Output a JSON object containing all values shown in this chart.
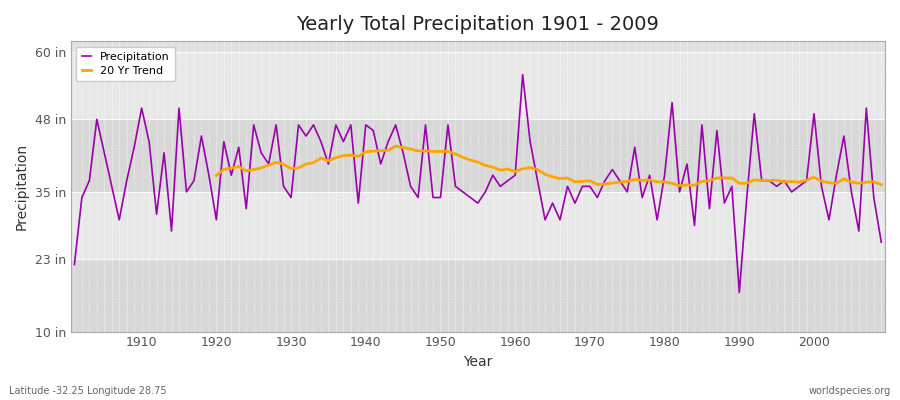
{
  "title": "Yearly Total Precipitation 1901 - 2009",
  "xlabel": "Year",
  "ylabel": "Precipitation",
  "lat_lon_label": "Latitude -32.25 Longitude 28.75",
  "source_label": "worldspecies.org",
  "precip_color": "#9900AA",
  "trend_color": "#FFA500",
  "years": [
    1901,
    1902,
    1903,
    1904,
    1905,
    1906,
    1907,
    1908,
    1909,
    1910,
    1911,
    1912,
    1913,
    1914,
    1915,
    1916,
    1917,
    1918,
    1919,
    1920,
    1921,
    1922,
    1923,
    1924,
    1925,
    1926,
    1927,
    1928,
    1929,
    1930,
    1931,
    1932,
    1933,
    1934,
    1935,
    1936,
    1937,
    1938,
    1939,
    1940,
    1941,
    1942,
    1943,
    1944,
    1945,
    1946,
    1947,
    1948,
    1949,
    1950,
    1951,
    1952,
    1953,
    1954,
    1955,
    1956,
    1957,
    1958,
    1959,
    1960,
    1961,
    1962,
    1963,
    1964,
    1965,
    1966,
    1967,
    1968,
    1969,
    1970,
    1971,
    1972,
    1973,
    1974,
    1975,
    1976,
    1977,
    1978,
    1979,
    1980,
    1981,
    1982,
    1983,
    1984,
    1985,
    1986,
    1987,
    1988,
    1989,
    1990,
    1991,
    1992,
    1993,
    1994,
    1995,
    1996,
    1997,
    1998,
    1999,
    2000,
    2001,
    2002,
    2003,
    2004,
    2005,
    2006,
    2007,
    2008,
    2009
  ],
  "precip": [
    22.0,
    34.0,
    37.0,
    48.0,
    42.0,
    36.0,
    30.0,
    37.0,
    43.0,
    50.0,
    44.0,
    31.0,
    42.0,
    28.0,
    50.0,
    35.0,
    37.0,
    45.0,
    38.0,
    30.0,
    44.0,
    38.0,
    43.0,
    32.0,
    47.0,
    42.0,
    40.0,
    47.0,
    36.0,
    34.0,
    47.0,
    45.0,
    47.0,
    44.0,
    40.0,
    47.0,
    44.0,
    47.0,
    33.0,
    47.0,
    46.0,
    40.0,
    44.0,
    47.0,
    42.0,
    36.0,
    34.0,
    47.0,
    34.0,
    34.0,
    47.0,
    36.0,
    35.0,
    34.0,
    33.0,
    35.0,
    38.0,
    36.0,
    37.0,
    38.0,
    56.0,
    44.0,
    37.0,
    30.0,
    33.0,
    30.0,
    36.0,
    33.0,
    36.0,
    36.0,
    34.0,
    37.0,
    39.0,
    37.0,
    35.0,
    43.0,
    34.0,
    38.0,
    30.0,
    38.0,
    51.0,
    35.0,
    40.0,
    29.0,
    47.0,
    32.0,
    46.0,
    33.0,
    36.0,
    17.0,
    34.0,
    49.0,
    37.0,
    37.0,
    36.0,
    37.0,
    35.0,
    36.0,
    37.0,
    49.0,
    36.0,
    30.0,
    38.0,
    45.0,
    35.0,
    28.0,
    50.0,
    34.0,
    26.0
  ],
  "ylim": [
    10,
    62
  ],
  "yticks": [
    10,
    23,
    35,
    48,
    60
  ],
  "ytick_labels": [
    "10 in",
    "23 in",
    "35 in",
    "48 in",
    "60 in"
  ],
  "xticks": [
    1910,
    1920,
    1930,
    1940,
    1950,
    1960,
    1970,
    1980,
    1990,
    2000
  ],
  "bg_color": "#FFFFFF",
  "plot_bg_color": "#E0E0E0",
  "band_colors": [
    "#D8D8D8",
    "#E8E8E8"
  ],
  "grid_color": "#FFFFFF",
  "trend_window": 20,
  "figsize": [
    9.0,
    4.0
  ],
  "dpi": 100
}
